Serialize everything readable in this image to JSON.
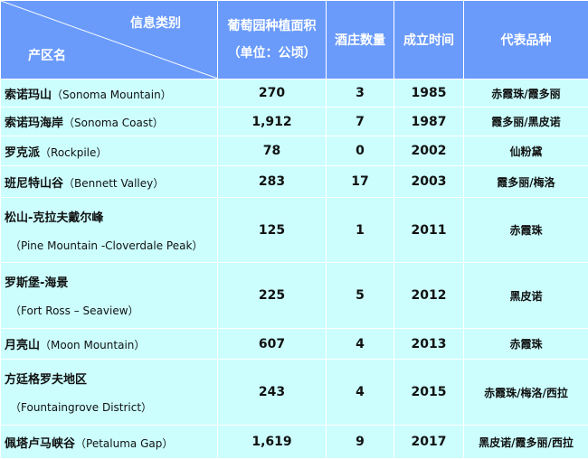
{
  "header": {
    "category": "信息类别",
    "region": "产区名",
    "area_l1": "葡萄园种植面积",
    "area_l2": "（单位：公顷）",
    "wineries": "酒庄数量",
    "founded": "成立时间",
    "varieties": "代表品种"
  },
  "rows": [
    {
      "zh": "索诺玛山",
      "en": "（Sonoma Mountain）",
      "area": "270",
      "wineries": "3",
      "year": "1985",
      "varieties": "赤霞珠/霞多丽"
    },
    {
      "zh": "索诺玛海岸",
      "en": "（Sonoma Coast）",
      "area": "1,912",
      "wineries": "7",
      "year": "1987",
      "varieties": "霞多丽/黑皮诺"
    },
    {
      "zh": "罗克派",
      "en": "（Rockpile）",
      "area": "78",
      "wineries": "0",
      "year": "2002",
      "varieties": "仙粉黛"
    },
    {
      "zh": "班尼特山谷",
      "en": "（Bennett Valley）",
      "area": "283",
      "wineries": "17",
      "year": "2003",
      "varieties": "霞多丽/梅洛"
    },
    {
      "zh": "松山-克拉夫戴尔峰",
      "en": "（Pine Mountain -Cloverdale Peak）",
      "area": "125",
      "wineries": "1",
      "year": "2011",
      "varieties": "赤霞珠"
    },
    {
      "zh": "罗斯堡-海景",
      "en": "（Fort Ross  –  Seaview）",
      "area": "225",
      "wineries": "5",
      "year": "2012",
      "varieties": "黑皮诺"
    },
    {
      "zh": "月亮山",
      "en": "（Moon Mountain）",
      "area": "607",
      "wineries": "4",
      "year": "2013",
      "varieties": "赤霞珠"
    },
    {
      "zh": "方廷格罗夫地区",
      "en": "（Fountaingrove District）",
      "area": "243",
      "wineries": "4",
      "year": "2015",
      "varieties": "赤霞珠/梅洛/西拉"
    },
    {
      "zh": "佩塔卢马峡谷",
      "en": "（Petaluma Gap）",
      "area": "1,619",
      "wineries": "9",
      "year": "2017",
      "varieties": "黑皮诺/霞多丽/西拉"
    }
  ]
}
